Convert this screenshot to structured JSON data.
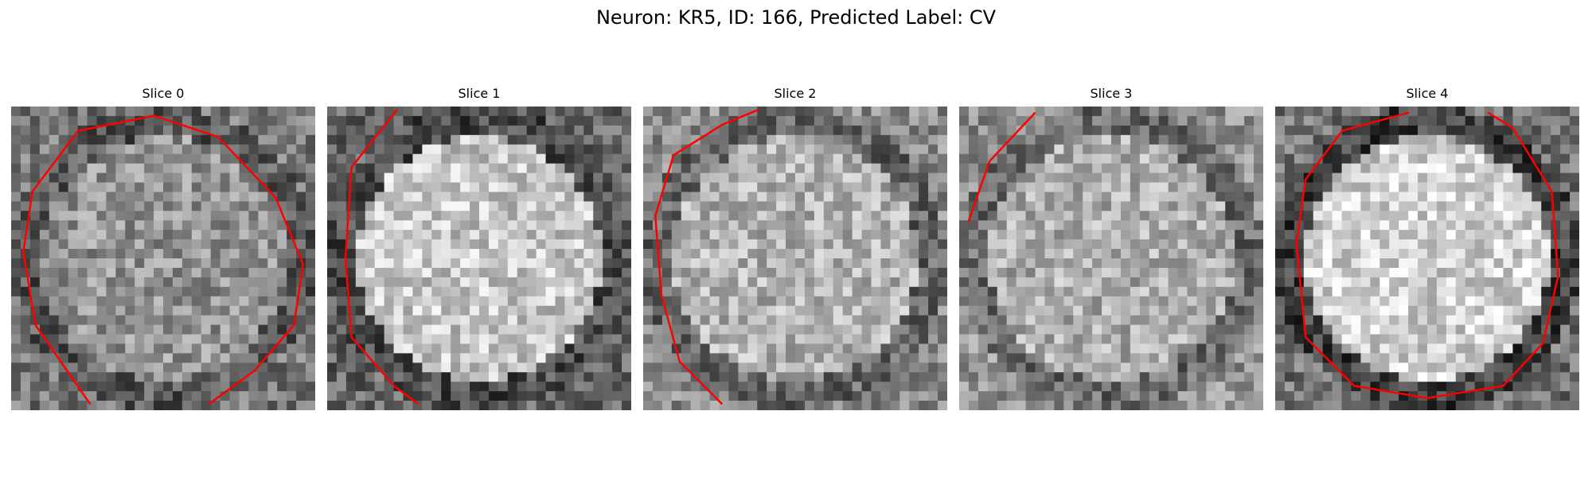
{
  "figure": {
    "title": "Neuron: KR5, ID: 166, Predicted Label: CV"
  },
  "colors": {
    "contour": "#ff0000",
    "background": "#ffffff"
  },
  "panels": [
    {
      "label": "Slice 0",
      "brightness": 0.58,
      "ring": 0.35,
      "rim": 0.32,
      "contour": [
        [
          0.26,
          0.98
        ],
        [
          0.08,
          0.72
        ],
        [
          0.04,
          0.48
        ],
        [
          0.07,
          0.28
        ],
        [
          0.22,
          0.08
        ],
        [
          0.47,
          0.03
        ],
        [
          0.68,
          0.1
        ],
        [
          0.87,
          0.3
        ],
        [
          0.96,
          0.52
        ],
        [
          0.93,
          0.72
        ],
        [
          0.8,
          0.87
        ],
        [
          0.65,
          0.98
        ]
      ]
    },
    {
      "label": "Slice 1",
      "brightness": 0.78,
      "ring": 0.3,
      "rim": 0.25,
      "contour": [
        [
          0.23,
          0.01
        ],
        [
          0.08,
          0.2
        ],
        [
          0.06,
          0.5
        ],
        [
          0.08,
          0.76
        ],
        [
          0.22,
          0.92
        ],
        [
          0.3,
          0.98
        ]
      ]
    },
    {
      "label": "Slice 2",
      "brightness": 0.7,
      "ring": 0.4,
      "rim": 0.4,
      "contour": [
        [
          0.38,
          0.01
        ],
        [
          0.26,
          0.06
        ],
        [
          0.1,
          0.16
        ],
        [
          0.04,
          0.36
        ],
        [
          0.06,
          0.62
        ],
        [
          0.12,
          0.84
        ],
        [
          0.26,
          0.98
        ]
      ]
    },
    {
      "label": "Slice 3",
      "brightness": 0.68,
      "ring": 0.42,
      "rim": 0.42,
      "contour": [
        [
          0.25,
          0.02
        ],
        [
          0.1,
          0.18
        ],
        [
          0.03,
          0.38
        ]
      ]
    },
    {
      "label": "Slice 4",
      "brightness": 0.82,
      "ring": 0.25,
      "rim": 0.3,
      "contour": [
        [
          0.44,
          0.02
        ],
        [
          0.22,
          0.08
        ],
        [
          0.1,
          0.24
        ],
        [
          0.07,
          0.45
        ],
        [
          0.1,
          0.76
        ],
        [
          0.26,
          0.92
        ],
        [
          0.5,
          0.96
        ],
        [
          0.75,
          0.92
        ],
        [
          0.88,
          0.78
        ],
        [
          0.93,
          0.56
        ],
        [
          0.91,
          0.28
        ],
        [
          0.78,
          0.07
        ],
        [
          0.7,
          0.02
        ]
      ]
    }
  ]
}
